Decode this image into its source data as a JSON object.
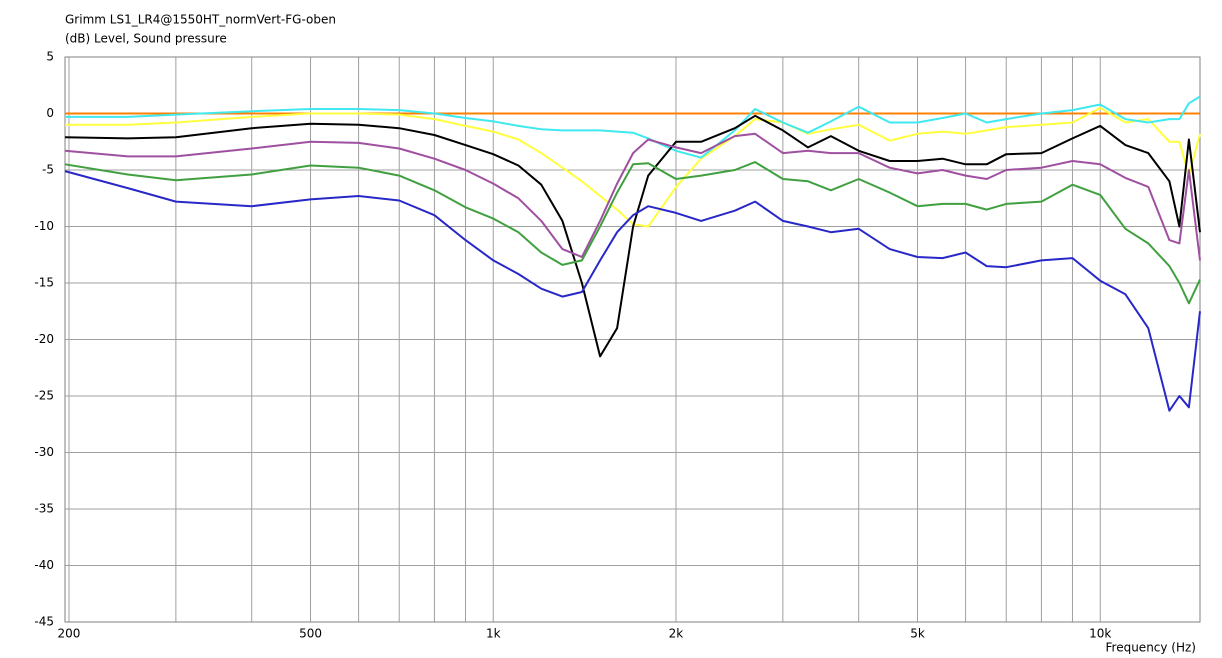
{
  "chart_data": {
    "type": "line",
    "title": "Grimm LS1_LR4@1550HT_normVert-FG-oben",
    "subtitle": "(dB)  Level, Sound pressure",
    "x_label": "Frequency (Hz)",
    "log_x": true,
    "grid": true,
    "xlim": [
      197,
      14600
    ],
    "ylim": [
      -45,
      5
    ],
    "xticks": [
      200,
      500,
      {
        "value": 1000,
        "label": "1k"
      },
      {
        "value": 2000,
        "label": "2k"
      },
      {
        "value": 5000,
        "label": "5k"
      },
      {
        "value": 10000,
        "label": "10k"
      }
    ],
    "xgrid": [
      200,
      300,
      400,
      500,
      600,
      700,
      800,
      900,
      1000,
      2000,
      3000,
      4000,
      5000,
      6000,
      7000,
      8000,
      9000,
      10000
    ],
    "yticks": [
      5,
      0,
      -5,
      -10,
      -15,
      -20,
      -25,
      -30,
      -35,
      -40,
      -45
    ],
    "x": [
      197,
      250,
      300,
      400,
      500,
      600,
      700,
      800,
      900,
      1000,
      1100,
      1200,
      1300,
      1400,
      1500,
      1600,
      1700,
      1800,
      2000,
      2200,
      2500,
      2700,
      3000,
      3300,
      3600,
      4000,
      4500,
      5000,
      5500,
      6000,
      6500,
      7000,
      8000,
      9000,
      10000,
      11000,
      12000,
      13000,
      13500,
      14000,
      14600
    ],
    "series": [
      {
        "color": "#ff8000",
        "values": [
          0,
          0,
          0,
          0,
          0,
          0,
          0,
          0,
          0,
          0,
          0,
          0,
          0,
          0,
          0,
          0,
          0,
          0,
          0,
          0,
          0,
          0,
          0,
          0,
          0,
          0,
          0,
          0,
          0,
          0,
          0,
          0,
          0,
          0,
          0,
          0,
          0,
          0,
          0,
          0,
          0
        ]
      },
      {
        "color": "#ffff40",
        "values": [
          -1,
          -1,
          -0.8,
          -0.3,
          0,
          0,
          -0.1,
          -0.5,
          -1.1,
          -1.6,
          -2.3,
          -3.5,
          -4.8,
          -6,
          -7.3,
          -8.5,
          -9.8,
          -10,
          -6.5,
          -4,
          -2,
          -0.5,
          -0.8,
          -1.8,
          -1.4,
          -1,
          -2.4,
          -1.8,
          -1.6,
          -1.8,
          -1.5,
          -1.2,
          -1,
          -0.8,
          0.5,
          -0.8,
          -0.5,
          -2.5,
          -2.5,
          -5.5,
          -1.8
        ]
      },
      {
        "color": "#40e8f0",
        "values": [
          -0.3,
          -0.3,
          -0.1,
          0.2,
          0.4,
          0.4,
          0.3,
          0,
          -0.4,
          -0.7,
          -1.1,
          -1.4,
          -1.5,
          -1.5,
          -1.5,
          -1.6,
          -1.7,
          -2.2,
          -3.3,
          -3.9,
          -1.5,
          0.4,
          -0.8,
          -1.7,
          -0.7,
          0.6,
          -0.8,
          -0.8,
          -0.4,
          0,
          -0.8,
          -0.5,
          0,
          0.3,
          0.8,
          -0.5,
          -0.8,
          -0.5,
          -0.5,
          0.9,
          1.5
        ]
      },
      {
        "color": "#000000",
        "values": [
          -2.1,
          -2.2,
          -2.1,
          -1.3,
          -0.9,
          -1,
          -1.3,
          -1.9,
          -2.8,
          -3.6,
          -4.6,
          -6.3,
          -9.5,
          -15,
          -21.5,
          -19,
          -10,
          -5.5,
          -2.5,
          -2.5,
          -1.3,
          -0.2,
          -1.5,
          -3,
          -2,
          -3.3,
          -4.2,
          -4.2,
          -4,
          -4.5,
          -4.5,
          -3.6,
          -3.5,
          -2.2,
          -1.1,
          -2.8,
          -3.5,
          -6,
          -10,
          -2.3,
          -10.5
        ]
      },
      {
        "color": "#a050a0",
        "values": [
          -3.3,
          -3.8,
          -3.8,
          -3.1,
          -2.5,
          -2.6,
          -3.1,
          -4,
          -5,
          -6.2,
          -7.5,
          -9.5,
          -12,
          -12.7,
          -9.5,
          -6.2,
          -3.5,
          -2.3,
          -3,
          -3.5,
          -2,
          -1.8,
          -3.5,
          -3.3,
          -3.5,
          -3.5,
          -4.8,
          -5.3,
          -5,
          -5.5,
          -5.8,
          -5,
          -4.8,
          -4.2,
          -4.5,
          -5.7,
          -6.5,
          -11.2,
          -11.5,
          -5,
          -13
        ]
      },
      {
        "color": "#40a040",
        "values": [
          -4.5,
          -5.4,
          -5.9,
          -5.4,
          -4.6,
          -4.8,
          -5.5,
          -6.8,
          -8.3,
          -9.3,
          -10.5,
          -12.3,
          -13.4,
          -13,
          -10,
          -7,
          -4.5,
          -4.4,
          -5.8,
          -5.5,
          -5,
          -4.3,
          -5.8,
          -6,
          -6.8,
          -5.8,
          -7,
          -8.2,
          -8,
          -8,
          -8.5,
          -8,
          -7.8,
          -6.3,
          -7.2,
          -10.2,
          -11.5,
          -13.5,
          -15,
          -16.8,
          -14.7
        ]
      },
      {
        "color": "#2828c8",
        "values": [
          -5.1,
          -6.6,
          -7.8,
          -8.2,
          -7.6,
          -7.3,
          -7.7,
          -9,
          -11.2,
          -13,
          -14.2,
          -15.5,
          -16.2,
          -15.8,
          -13,
          -10.5,
          -9,
          -8.2,
          -8.8,
          -9.5,
          -8.6,
          -7.8,
          -9.5,
          -10,
          -10.5,
          -10.2,
          -12,
          -12.7,
          -12.8,
          -12.3,
          -13.5,
          -13.6,
          -13,
          -12.8,
          -14.8,
          -16,
          -19,
          -26.3,
          -25,
          -26,
          -17.5
        ]
      }
    ]
  }
}
